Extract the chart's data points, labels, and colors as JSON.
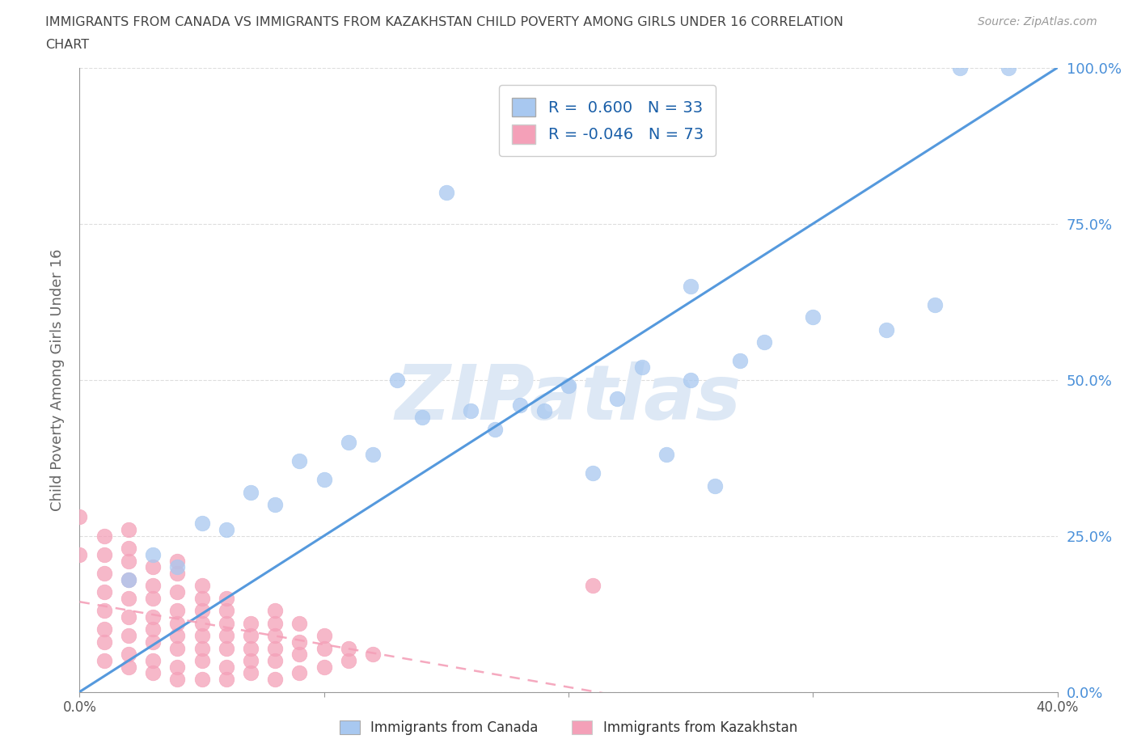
{
  "title_line1": "IMMIGRANTS FROM CANADA VS IMMIGRANTS FROM KAZAKHSTAN CHILD POVERTY AMONG GIRLS UNDER 16 CORRELATION",
  "title_line2": "CHART",
  "source": "Source: ZipAtlas.com",
  "ylabel": "Child Poverty Among Girls Under 16",
  "background_color": "#ffffff",
  "canada_R": 0.6,
  "canada_N": 33,
  "kazakhstan_R": -0.046,
  "kazakhstan_N": 73,
  "canada_color": "#a8c8f0",
  "canada_edge_color": "#88aadd",
  "kazakhstan_color": "#f4a0b8",
  "kazakhstan_edge_color": "#dd7090",
  "canada_line_color": "#5599dd",
  "kazakhstan_line_color": "#f4a0b8",
  "xmin": 0.0,
  "xmax": 0.4,
  "ymin": 0.0,
  "ymax": 1.0,
  "canada_x": [
    0.02,
    0.03,
    0.04,
    0.05,
    0.06,
    0.07,
    0.08,
    0.09,
    0.1,
    0.11,
    0.12,
    0.13,
    0.14,
    0.15,
    0.16,
    0.17,
    0.18,
    0.19,
    0.2,
    0.21,
    0.22,
    0.23,
    0.24,
    0.25,
    0.26,
    0.27,
    0.28,
    0.3,
    0.33,
    0.35,
    0.36,
    0.25,
    0.38
  ],
  "canada_y": [
    0.18,
    0.22,
    0.2,
    0.27,
    0.26,
    0.32,
    0.3,
    0.37,
    0.34,
    0.4,
    0.38,
    0.5,
    0.44,
    0.8,
    0.45,
    0.42,
    0.46,
    0.45,
    0.49,
    0.35,
    0.47,
    0.52,
    0.38,
    0.5,
    0.33,
    0.53,
    0.56,
    0.6,
    0.58,
    0.62,
    1.0,
    0.65,
    1.0
  ],
  "kazakhstan_x": [
    0.0,
    0.0,
    0.01,
    0.01,
    0.01,
    0.01,
    0.01,
    0.01,
    0.01,
    0.01,
    0.02,
    0.02,
    0.02,
    0.02,
    0.02,
    0.02,
    0.02,
    0.02,
    0.02,
    0.03,
    0.03,
    0.03,
    0.03,
    0.03,
    0.03,
    0.03,
    0.03,
    0.04,
    0.04,
    0.04,
    0.04,
    0.04,
    0.04,
    0.04,
    0.04,
    0.04,
    0.05,
    0.05,
    0.05,
    0.05,
    0.05,
    0.05,
    0.05,
    0.05,
    0.06,
    0.06,
    0.06,
    0.06,
    0.06,
    0.06,
    0.06,
    0.07,
    0.07,
    0.07,
    0.07,
    0.07,
    0.08,
    0.08,
    0.08,
    0.08,
    0.08,
    0.08,
    0.09,
    0.09,
    0.09,
    0.09,
    0.1,
    0.1,
    0.1,
    0.11,
    0.11,
    0.12,
    0.21
  ],
  "kazakhstan_y": [
    0.22,
    0.28,
    0.05,
    0.08,
    0.1,
    0.13,
    0.16,
    0.19,
    0.22,
    0.25,
    0.04,
    0.06,
    0.09,
    0.12,
    0.15,
    0.18,
    0.21,
    0.23,
    0.26,
    0.03,
    0.05,
    0.08,
    0.1,
    0.12,
    0.15,
    0.17,
    0.2,
    0.02,
    0.04,
    0.07,
    0.09,
    0.11,
    0.13,
    0.16,
    0.19,
    0.21,
    0.02,
    0.05,
    0.07,
    0.09,
    0.11,
    0.13,
    0.15,
    0.17,
    0.02,
    0.04,
    0.07,
    0.09,
    0.11,
    0.13,
    0.15,
    0.03,
    0.05,
    0.07,
    0.09,
    0.11,
    0.02,
    0.05,
    0.07,
    0.09,
    0.11,
    0.13,
    0.03,
    0.06,
    0.08,
    0.11,
    0.04,
    0.07,
    0.09,
    0.05,
    0.07,
    0.06,
    0.17
  ],
  "canada_line_x": [
    0.0,
    0.4
  ],
  "canada_line_y": [
    0.0,
    1.0
  ],
  "kazakhstan_line_x": [
    0.0,
    0.4
  ],
  "watermark": "ZIPatlas",
  "watermark_color": "#dde8f5",
  "legend_label_color": "#1a5fa8",
  "tick_color_y": "#4a90d9",
  "tick_color_x": "#555555",
  "grid_color": "#dddddd",
  "ylabel_color": "#666666",
  "axis_color": "#999999",
  "bottom_legend_color": "#333333"
}
